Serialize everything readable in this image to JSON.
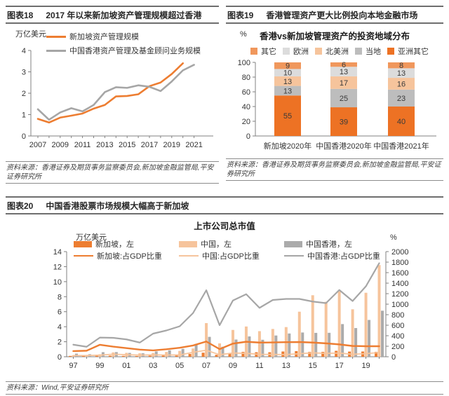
{
  "colors": {
    "orange": "#ED7D31",
    "orange_deep": "#ED7224",
    "orange_mid": "#F0975C",
    "orange_light": "#F6C49C",
    "gray_line": "#A6A6A6",
    "gray_mid": "#BDBDBD",
    "gray_light": "#DCDCDC",
    "axis": "#808080",
    "tick_text": "#333333"
  },
  "fig18": {
    "tag": "图表18",
    "title": "2017 年以来新加坡资产管理规模超过香港",
    "unit_label": "万亿美元",
    "source": "资料来源：香港证券及期货事务监察委员会,新加坡金融监管局,平安证券研究所"
  },
  "fig19": {
    "tag": "图表19",
    "title": "香港管理资产更大比例投向本地金融市场",
    "unit_label": "%",
    "chart_title": "香港vs新加坡管理资产的投资地域分布",
    "source": "资料来源：香港证券及期货事务监察委员会,新加坡金融监管局,平安证券研究所"
  },
  "fig20": {
    "tag": "图表20",
    "title": "中国香港股票市场规模大幅高于新加坡",
    "chart_title": "上市公司总市值",
    "unit_left": "万亿美元",
    "unit_right": "%",
    "source": "资料来源：Wind,平安证券研究所"
  },
  "chart_data": [
    {
      "id": "fig18",
      "type": "line",
      "title": "",
      "ylabel": "万亿美元",
      "ylim": [
        0,
        4
      ],
      "yticks": [
        0,
        1,
        2,
        3,
        4
      ],
      "x_start": 2007,
      "x_end": 2021,
      "xticks": [
        2007,
        2009,
        2011,
        2013,
        2015,
        2017,
        2019,
        2021
      ],
      "grid": false,
      "legend_position": "top-left",
      "series": [
        {
          "name": "新加坡资产管理规模",
          "color": "#ED7D31",
          "width": 2.6,
          "values": [
            0.8,
            0.63,
            0.86,
            0.95,
            1.05,
            1.28,
            1.45,
            1.85,
            1.87,
            1.95,
            2.33,
            2.5,
            2.9,
            3.4,
            null
          ]
        },
        {
          "name": "中国香港资产管理及基金顾问业务规模",
          "color": "#A6A6A6",
          "width": 2.6,
          "values": [
            1.25,
            0.76,
            1.1,
            1.3,
            1.15,
            1.45,
            2.05,
            2.28,
            2.25,
            2.37,
            2.3,
            2.1,
            2.55,
            3.07,
            3.33
          ]
        }
      ]
    },
    {
      "id": "fig19",
      "type": "bar",
      "subtype": "stacked",
      "title": "香港vs新加坡管理资产的投资地域分布",
      "ylabel": "%",
      "ylim": [
        0,
        100
      ],
      "yticks": [
        0,
        20,
        40,
        60,
        80,
        100
      ],
      "grid": false,
      "legend_position": "top",
      "categories": [
        "新加坡2020年",
        "中国香港2020年",
        "中国香港2021年"
      ],
      "stack_order_bottom_to_top": [
        "亚洲其它",
        "当地",
        "北美洲",
        "欧洲",
        "其它"
      ],
      "series": [
        {
          "name": "其它",
          "color": "#F0975C",
          "values": [
            9,
            6,
            8
          ]
        },
        {
          "name": "欧洲",
          "color": "#DCDCDC",
          "values": [
            10,
            13,
            13
          ]
        },
        {
          "name": "北美洲",
          "color": "#F6C49C",
          "values": [
            13,
            17,
            16
          ]
        },
        {
          "name": "当地",
          "color": "#BDBDBD",
          "values": [
            13,
            25,
            23
          ]
        },
        {
          "name": "亚洲其它",
          "color": "#ED7224",
          "values": [
            55,
            39,
            40
          ]
        }
      ]
    },
    {
      "id": "fig20",
      "type": "bar-line-combo",
      "title": "上市公司总市值",
      "ylabel_left": "万亿美元",
      "ylabel_right": "%",
      "ylim_left": [
        0,
        14
      ],
      "yticks_left": [
        0,
        2,
        4,
        6,
        8,
        10,
        12,
        14
      ],
      "ylim_right": [
        0,
        2000
      ],
      "yticks_right": [
        0,
        200,
        400,
        600,
        800,
        1000,
        1200,
        1400,
        1600,
        1800,
        2000
      ],
      "x_start": 1997,
      "x_end": 2020,
      "xtick_labels": [
        "97",
        "99",
        "01",
        "03",
        "05",
        "07",
        "09",
        "11",
        "13",
        "15",
        "17",
        "19"
      ],
      "grid": false,
      "legend_position": "top",
      "bar_series": [
        {
          "name": "新加坡，左",
          "axis": "left",
          "color": "#ED7D31",
          "values": [
            0.11,
            0.1,
            0.2,
            0.15,
            0.12,
            0.1,
            0.15,
            0.22,
            0.26,
            0.38,
            0.54,
            0.26,
            0.48,
            0.65,
            0.6,
            0.6,
            0.7,
            0.75,
            0.64,
            0.65,
            0.79,
            0.69,
            0.7,
            0.65
          ]
        },
        {
          "name": "中国，左",
          "axis": "left",
          "color": "#F6C49C",
          "values": [
            0.21,
            0.23,
            0.33,
            0.58,
            0.52,
            0.46,
            0.51,
            0.64,
            0.78,
            1.1,
            4.48,
            1.78,
            3.57,
            4.03,
            3.41,
            3.7,
            3.95,
            6.0,
            8.19,
            7.32,
            8.71,
            6.32,
            8.52,
            12.21
          ]
        },
        {
          "name": "中国香港，左",
          "axis": "left",
          "color": "#ABABAB",
          "values": [
            0.41,
            0.34,
            0.61,
            0.62,
            0.51,
            0.46,
            0.71,
            0.86,
            1.05,
            1.71,
            2.65,
            1.33,
            2.29,
            2.71,
            2.26,
            2.83,
            3.1,
            3.23,
            3.18,
            3.19,
            4.35,
            3.82,
            4.9,
            6.13
          ]
        }
      ],
      "line_series": [
        {
          "name": "新加坡:占GDP比重",
          "axis": "right",
          "color": "#ED7D31",
          "width": 2.4,
          "values": [
            107,
            115,
            228,
            193,
            164,
            136,
            121,
            143,
            171,
            214,
            290,
            145,
            250,
            285,
            270,
            272,
            277,
            280,
            270,
            255,
            235,
            205,
            200,
            200
          ]
        },
        {
          "name": "中国:占GDP比重",
          "axis": "right",
          "color": "#F6C49C",
          "width": 1.8,
          "values": [
            23,
            24,
            31,
            48,
            39,
            31,
            36,
            33,
            34,
            85,
            123,
            39,
            71,
            66,
            46,
            44,
            42,
            58,
            74,
            65,
            71,
            46,
            60,
            80
          ]
        },
        {
          "name": "中国香港:占GDP比重",
          "axis": "right",
          "color": "#A6A6A6",
          "width": 2.2,
          "values": [
            230,
            190,
            365,
            360,
            330,
            270,
            440,
            500,
            580,
            830,
            1265,
            600,
            1070,
            1190,
            930,
            1080,
            1100,
            1100,
            1050,
            1020,
            1270,
            1060,
            1340,
            1780
          ]
        }
      ]
    }
  ]
}
